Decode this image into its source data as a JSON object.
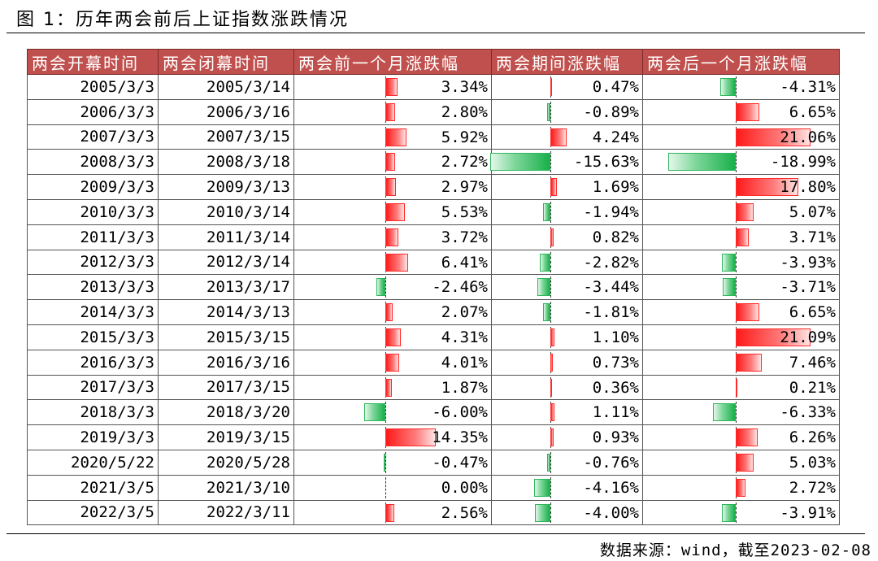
{
  "title": "图 1：历年两会前后上证指数涨跌情况",
  "headers": [
    "两会开幕时间",
    "两会闭幕时间",
    "两会前一个月涨跌幅",
    "两会期间涨跌幅",
    "两会后一个月涨跌幅"
  ],
  "rows": [
    {
      "open": "2005/3/3",
      "close": "2005/3/14",
      "before": 3.34,
      "during": 0.47,
      "after": -4.31,
      "before_text": "3.34%",
      "during_text": "0.47%",
      "after_text": "-4.31%"
    },
    {
      "open": "2006/3/3",
      "close": "2006/3/16",
      "before": 2.8,
      "during": -0.89,
      "after": 6.65,
      "before_text": "2.80%",
      "during_text": "-0.89%",
      "after_text": "6.65%"
    },
    {
      "open": "2007/3/3",
      "close": "2007/3/15",
      "before": 5.92,
      "during": 4.24,
      "after": 21.06,
      "before_text": "5.92%",
      "during_text": "4.24%",
      "after_text": "21.06%"
    },
    {
      "open": "2008/3/3",
      "close": "2008/3/18",
      "before": 2.72,
      "during": -15.63,
      "after": -18.99,
      "before_text": "2.72%",
      "during_text": "-15.63%",
      "after_text": "-18.99%"
    },
    {
      "open": "2009/3/3",
      "close": "2009/3/13",
      "before": 2.97,
      "during": 1.69,
      "after": 17.8,
      "before_text": "2.97%",
      "during_text": "1.69%",
      "after_text": "17.80%"
    },
    {
      "open": "2010/3/3",
      "close": "2010/3/14",
      "before": 5.53,
      "during": -1.94,
      "after": 5.07,
      "before_text": "5.53%",
      "during_text": "-1.94%",
      "after_text": "5.07%"
    },
    {
      "open": "2011/3/3",
      "close": "2011/3/14",
      "before": 3.72,
      "during": 0.82,
      "after": 3.71,
      "before_text": "3.72%",
      "during_text": "0.82%",
      "after_text": "3.71%"
    },
    {
      "open": "2012/3/3",
      "close": "2012/3/14",
      "before": 6.41,
      "during": -2.82,
      "after": -3.93,
      "before_text": "6.41%",
      "during_text": "-2.82%",
      "after_text": "-3.93%"
    },
    {
      "open": "2013/3/3",
      "close": "2013/3/17",
      "before": -2.46,
      "during": -3.44,
      "after": -3.71,
      "before_text": "-2.46%",
      "during_text": "-3.44%",
      "after_text": "-3.71%"
    },
    {
      "open": "2014/3/3",
      "close": "2014/3/13",
      "before": 2.07,
      "during": -1.81,
      "after": 6.65,
      "before_text": "2.07%",
      "during_text": "-1.81%",
      "after_text": "6.65%"
    },
    {
      "open": "2015/3/3",
      "close": "2015/3/15",
      "before": 4.31,
      "during": 1.1,
      "after": 21.09,
      "before_text": "4.31%",
      "during_text": "1.10%",
      "after_text": "21.09%"
    },
    {
      "open": "2016/3/3",
      "close": "2016/3/16",
      "before": 4.01,
      "during": 0.73,
      "after": 7.46,
      "before_text": "4.01%",
      "during_text": "0.73%",
      "after_text": "7.46%"
    },
    {
      "open": "2017/3/3",
      "close": "2017/3/15",
      "before": 1.87,
      "during": 0.36,
      "after": 0.21,
      "before_text": "1.87%",
      "during_text": "0.36%",
      "after_text": "0.21%"
    },
    {
      "open": "2018/3/3",
      "close": "2018/3/20",
      "before": -6.0,
      "during": 1.11,
      "after": -6.33,
      "before_text": "-6.00%",
      "during_text": "1.11%",
      "after_text": "-6.33%"
    },
    {
      "open": "2019/3/3",
      "close": "2019/3/15",
      "before": 14.35,
      "during": 0.93,
      "after": 6.26,
      "before_text": "14.35%",
      "during_text": "0.93%",
      "after_text": "6.26%"
    },
    {
      "open": "2020/5/22",
      "close": "2020/5/28",
      "before": -0.47,
      "during": -0.76,
      "after": 5.03,
      "before_text": "-0.47%",
      "during_text": "-0.76%",
      "after_text": "5.03%"
    },
    {
      "open": "2021/3/5",
      "close": "2021/3/10",
      "before": 0.0,
      "during": -4.16,
      "after": 2.72,
      "before_text": "0.00%",
      "during_text": "-4.16%",
      "after_text": "2.72%"
    },
    {
      "open": "2022/3/5",
      "close": "2022/3/11",
      "before": 2.56,
      "during": -4.0,
      "after": -3.91,
      "before_text": "2.56%",
      "during_text": "-4.00%",
      "after_text": "-3.91%"
    }
  ],
  "colors": {
    "header_bg": "#c0504d",
    "positive": "#ff1a1a",
    "negative": "#19b04a"
  },
  "footer": "数据来源：wind，截至2023-02-08"
}
